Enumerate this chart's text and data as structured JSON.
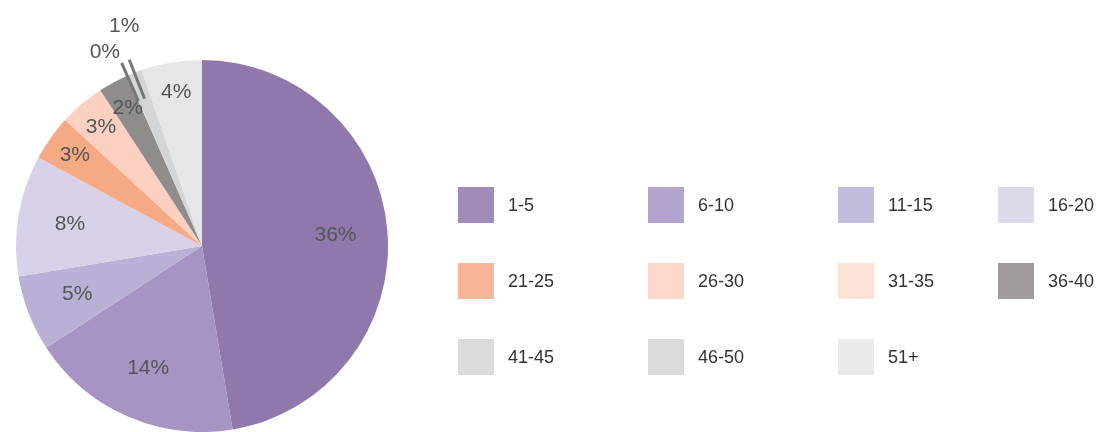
{
  "chart_data": {
    "type": "pie",
    "categories": [
      "1-5",
      "6-10",
      "11-15",
      "16-20",
      "21-25",
      "26-30",
      "31-35",
      "36-40",
      "41-45",
      "46-50",
      "51+"
    ],
    "values": [
      36,
      14,
      5,
      8,
      3,
      3,
      0,
      2,
      0,
      1,
      4
    ],
    "value_labels": [
      "36%",
      "14%",
      "5%",
      "8%",
      "3%",
      "3%",
      null,
      "2%",
      "0%",
      "1%",
      "4%"
    ],
    "colors": [
      "#9078ad",
      "#a694c4",
      "#bab0d6",
      "#d8d1e7",
      "#f6a985",
      "#fbd0c1",
      "#fcddd1",
      "#918c8c",
      "#d4d5d6",
      "#d4d5d6",
      "#e5e6e8"
    ],
    "legend": "right"
  }
}
